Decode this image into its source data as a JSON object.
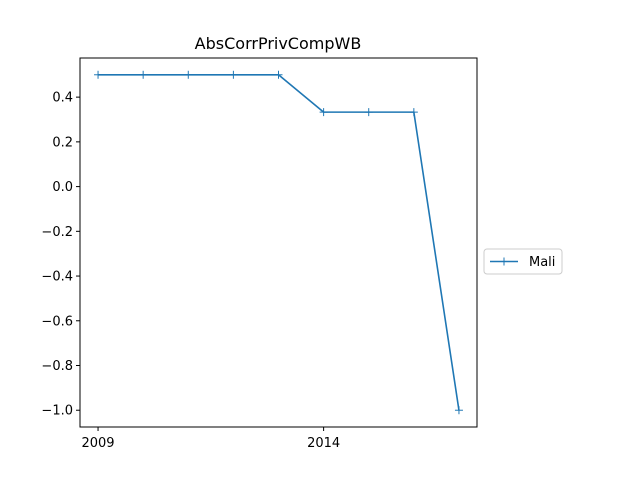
{
  "chart_data": {
    "type": "line",
    "title": "AbsCorrPrivCompWB",
    "xlabel": "",
    "ylabel": "",
    "x": [
      2009,
      2010,
      2011,
      2012,
      2013,
      2014,
      2015,
      2016,
      2017
    ],
    "series": [
      {
        "name": "Mali",
        "color": "#1f77b4",
        "marker": "plus",
        "values": [
          0.5,
          0.5,
          0.5,
          0.5,
          0.5,
          0.333,
          0.333,
          0.333,
          -1.0
        ]
      }
    ],
    "xlim": [
      2008.6,
      2017.4
    ],
    "ylim": [
      -1.075,
      0.575
    ],
    "xticks": [
      2009,
      2014
    ],
    "xtick_labels": [
      "2009",
      "2014"
    ],
    "yticks": [
      0.4,
      0.2,
      0.0,
      -0.2,
      -0.4,
      -0.6,
      -0.8,
      -1.0
    ],
    "ytick_labels": [
      "0.4",
      "0.2",
      "0.0",
      "−0.2",
      "−0.4",
      "−0.6",
      "−0.8",
      "−1.0"
    ],
    "grid": false,
    "legend_position": "center-right-outside"
  }
}
